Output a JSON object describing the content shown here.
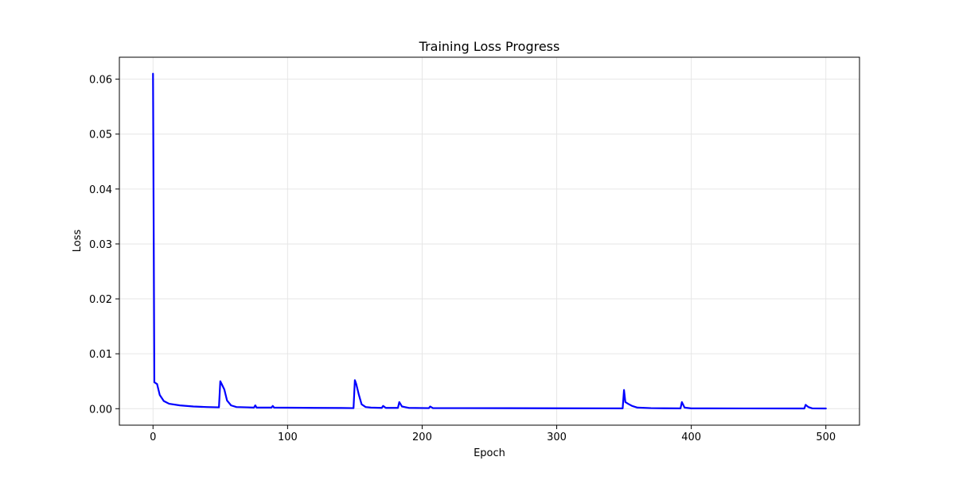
{
  "chart_data": {
    "type": "line",
    "title": "Training Loss Progress",
    "xlabel": "Epoch",
    "ylabel": "Loss",
    "xlim": [
      -25,
      525
    ],
    "ylim": [
      -0.003,
      0.064
    ],
    "xticks": [
      0,
      100,
      200,
      300,
      400,
      500
    ],
    "xtick_labels": [
      "0",
      "100",
      "200",
      "300",
      "400",
      "500"
    ],
    "yticks": [
      0.0,
      0.01,
      0.02,
      0.03,
      0.04,
      0.05,
      0.06
    ],
    "ytick_labels": [
      "0.00",
      "0.01",
      "0.02",
      "0.03",
      "0.04",
      "0.05",
      "0.06"
    ],
    "grid": true,
    "series": [
      {
        "color": "#0000ff",
        "x": [
          0,
          1,
          3,
          5,
          8,
          12,
          20,
          30,
          40,
          49,
          50,
          51,
          53,
          55,
          58,
          62,
          70,
          75,
          76,
          77,
          80,
          88,
          89,
          90,
          100,
          120,
          140,
          149,
          150,
          151,
          153,
          155,
          158,
          162,
          170,
          171,
          173,
          182,
          183,
          185,
          190,
          205,
          206,
          208,
          230,
          300,
          349,
          350,
          351,
          353,
          356,
          360,
          370,
          380,
          392,
          393,
          395,
          400,
          440,
          484,
          485,
          487,
          490,
          500
        ],
        "y": [
          0.061,
          0.0048,
          0.0045,
          0.0025,
          0.0014,
          0.0009,
          0.0006,
          0.0004,
          0.0003,
          0.00025,
          0.005,
          0.0045,
          0.0035,
          0.0015,
          0.0006,
          0.0003,
          0.00025,
          0.0002,
          0.0006,
          0.0002,
          0.0002,
          0.0002,
          0.0005,
          0.0002,
          0.00018,
          0.00015,
          0.00013,
          0.0001,
          0.0052,
          0.0045,
          0.0025,
          0.0008,
          0.0003,
          0.0002,
          0.00015,
          0.0005,
          0.00015,
          0.00015,
          0.0012,
          0.0004,
          0.00015,
          0.0001,
          0.0004,
          0.0001,
          0.0001,
          8e-05,
          6e-05,
          0.0034,
          0.0012,
          0.0009,
          0.0005,
          0.0002,
          0.0001,
          8e-05,
          6e-05,
          0.0012,
          0.0002,
          6e-05,
          5e-05,
          4e-05,
          0.0007,
          0.0003,
          5e-05,
          4e-05
        ]
      }
    ]
  }
}
